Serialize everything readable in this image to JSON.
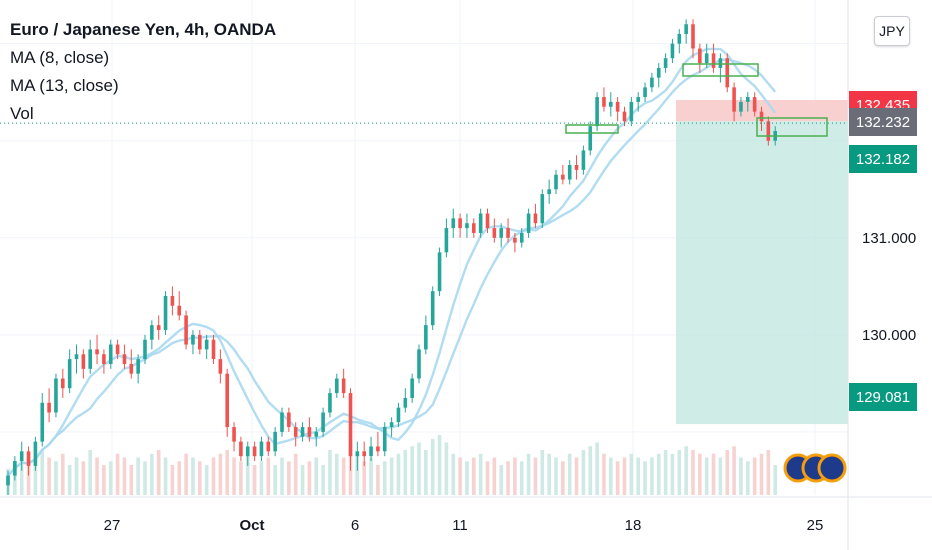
{
  "legend": {
    "title": "Euro / Japanese Yen, 4h, OANDA",
    "ma8": "MA (8, close)",
    "ma13": "MA (13, close)",
    "vol": "Vol"
  },
  "currency_button": "JPY",
  "colors": {
    "up": "#26a69a",
    "down": "#ef5350",
    "ma": "#a8d8f0",
    "tag_red": "#f23645",
    "tag_gray": "#6a6d78",
    "tag_teal": "#089981",
    "box_green": "#4caf50"
  },
  "chart_data": {
    "type": "candlestick",
    "symbol": "EUR/JPY",
    "timeframe": "4h",
    "y_axis": {
      "ticks": [
        "130.000",
        "131.000"
      ],
      "range": [
        128.35,
        133.45
      ]
    },
    "x_axis": {
      "ticks": [
        "27",
        "Oct",
        "6",
        "11",
        "18",
        "25"
      ]
    },
    "price_tags": [
      {
        "label": "132.435",
        "value": 132.435,
        "color": "red"
      },
      {
        "label": "132.232",
        "value": 132.232,
        "color": "gray"
      },
      {
        "label": "132.182",
        "value": 132.182,
        "color": "teal"
      },
      {
        "label": "129.081",
        "value": 129.081,
        "color": "teal"
      }
    ],
    "position": {
      "entry": 132.2,
      "stop": 132.42,
      "target": 129.081
    },
    "candles": [
      [
        128.45,
        128.6,
        128.35,
        128.55
      ],
      [
        128.55,
        128.75,
        128.5,
        128.7
      ],
      [
        128.7,
        128.9,
        128.6,
        128.8
      ],
      [
        128.8,
        128.85,
        128.55,
        128.65
      ],
      [
        128.65,
        128.95,
        128.6,
        128.9
      ],
      [
        128.9,
        129.4,
        128.85,
        129.3
      ],
      [
        129.3,
        129.45,
        129.1,
        129.2
      ],
      [
        129.2,
        129.6,
        129.15,
        129.55
      ],
      [
        129.55,
        129.65,
        129.35,
        129.45
      ],
      [
        129.45,
        129.85,
        129.4,
        129.75
      ],
      [
        129.75,
        129.9,
        129.6,
        129.8
      ],
      [
        129.8,
        129.85,
        129.55,
        129.65
      ],
      [
        129.65,
        129.95,
        129.6,
        129.85
      ],
      [
        129.85,
        130.0,
        129.7,
        129.8
      ],
      [
        129.8,
        129.85,
        129.6,
        129.7
      ],
      [
        129.7,
        129.95,
        129.65,
        129.9
      ],
      [
        129.9,
        129.95,
        129.75,
        129.8
      ],
      [
        129.8,
        129.9,
        129.65,
        129.7
      ],
      [
        129.7,
        129.85,
        129.55,
        129.6
      ],
      [
        129.6,
        129.8,
        129.5,
        129.75
      ],
      [
        129.75,
        130.0,
        129.7,
        129.95
      ],
      [
        129.95,
        130.15,
        129.85,
        130.1
      ],
      [
        130.1,
        130.2,
        129.95,
        130.05
      ],
      [
        130.05,
        130.45,
        130.0,
        130.4
      ],
      [
        130.4,
        130.5,
        130.2,
        130.3
      ],
      [
        130.3,
        130.45,
        130.15,
        130.2
      ],
      [
        130.2,
        130.25,
        129.85,
        129.9
      ],
      [
        129.9,
        130.05,
        129.8,
        130.0
      ],
      [
        130.0,
        130.05,
        129.8,
        129.85
      ],
      [
        129.85,
        130.0,
        129.75,
        129.95
      ],
      [
        129.95,
        130.0,
        129.7,
        129.75
      ],
      [
        129.75,
        129.85,
        129.5,
        129.6
      ],
      [
        129.6,
        129.65,
        128.95,
        129.05
      ],
      [
        129.05,
        129.1,
        128.8,
        128.9
      ],
      [
        128.9,
        128.95,
        128.7,
        128.75
      ],
      [
        128.75,
        128.9,
        128.65,
        128.85
      ],
      [
        128.85,
        128.9,
        128.7,
        128.75
      ],
      [
        128.75,
        128.95,
        128.7,
        128.9
      ],
      [
        128.9,
        128.95,
        128.75,
        128.8
      ],
      [
        128.8,
        129.05,
        128.75,
        129.0
      ],
      [
        129.0,
        129.25,
        128.95,
        129.2
      ],
      [
        129.2,
        129.25,
        129.0,
        129.05
      ],
      [
        129.05,
        129.1,
        128.85,
        128.95
      ],
      [
        128.95,
        129.1,
        128.9,
        129.05
      ],
      [
        129.05,
        129.15,
        128.9,
        128.95
      ],
      [
        128.95,
        129.05,
        128.85,
        129.0
      ],
      [
        129.0,
        129.25,
        128.95,
        129.2
      ],
      [
        129.2,
        129.45,
        129.15,
        129.4
      ],
      [
        129.4,
        129.6,
        129.35,
        129.55
      ],
      [
        129.55,
        129.65,
        129.35,
        129.4
      ],
      [
        129.4,
        129.45,
        128.6,
        128.75
      ],
      [
        128.75,
        128.9,
        128.6,
        128.8
      ],
      [
        128.8,
        128.9,
        128.65,
        128.75
      ],
      [
        128.75,
        128.95,
        128.7,
        128.85
      ],
      [
        128.85,
        129.0,
        128.75,
        128.8
      ],
      [
        128.8,
        129.1,
        128.75,
        129.05
      ],
      [
        129.05,
        129.15,
        128.95,
        129.1
      ],
      [
        129.1,
        129.3,
        129.05,
        129.25
      ],
      [
        129.25,
        129.45,
        129.2,
        129.35
      ],
      [
        129.35,
        129.6,
        129.3,
        129.55
      ],
      [
        129.55,
        129.9,
        129.5,
        129.85
      ],
      [
        129.85,
        130.2,
        129.8,
        130.1
      ],
      [
        130.1,
        130.5,
        130.05,
        130.45
      ],
      [
        130.45,
        130.9,
        130.4,
        130.85
      ],
      [
        130.85,
        131.2,
        130.8,
        131.1
      ],
      [
        131.1,
        131.3,
        131.0,
        131.2
      ],
      [
        131.2,
        131.25,
        131.0,
        131.1
      ],
      [
        131.1,
        131.25,
        131.0,
        131.15
      ],
      [
        131.15,
        131.2,
        131.0,
        131.05
      ],
      [
        131.05,
        131.3,
        131.0,
        131.25
      ],
      [
        131.25,
        131.3,
        131.05,
        131.1
      ],
      [
        131.1,
        131.2,
        130.95,
        131.0
      ],
      [
        131.0,
        131.15,
        130.9,
        131.1
      ],
      [
        131.1,
        131.2,
        130.95,
        131.0
      ],
      [
        131.0,
        131.05,
        130.85,
        130.95
      ],
      [
        130.95,
        131.1,
        130.9,
        131.05
      ],
      [
        131.05,
        131.3,
        131.0,
        131.25
      ],
      [
        131.25,
        131.35,
        131.1,
        131.15
      ],
      [
        131.15,
        131.5,
        131.1,
        131.45
      ],
      [
        131.45,
        131.6,
        131.35,
        131.5
      ],
      [
        131.5,
        131.7,
        131.45,
        131.65
      ],
      [
        131.65,
        131.75,
        131.55,
        131.6
      ],
      [
        131.6,
        131.8,
        131.55,
        131.75
      ],
      [
        131.75,
        131.85,
        131.6,
        131.7
      ],
      [
        131.7,
        131.95,
        131.65,
        131.9
      ],
      [
        131.9,
        132.2,
        131.85,
        132.15
      ],
      [
        132.15,
        132.5,
        132.1,
        132.45
      ],
      [
        132.45,
        132.55,
        132.3,
        132.35
      ],
      [
        132.35,
        132.5,
        132.25,
        132.4
      ],
      [
        132.4,
        132.45,
        132.2,
        132.3
      ],
      [
        132.3,
        132.35,
        132.15,
        132.2
      ],
      [
        132.2,
        132.45,
        132.15,
        132.4
      ],
      [
        132.4,
        132.5,
        132.3,
        132.45
      ],
      [
        132.45,
        132.6,
        132.4,
        132.55
      ],
      [
        132.55,
        132.7,
        132.5,
        132.65
      ],
      [
        132.65,
        132.8,
        132.55,
        132.75
      ],
      [
        132.75,
        132.9,
        132.7,
        132.85
      ],
      [
        132.85,
        133.05,
        132.8,
        133.0
      ],
      [
        133.0,
        133.15,
        132.9,
        133.1
      ],
      [
        133.1,
        133.25,
        133.0,
        133.2
      ],
      [
        133.2,
        133.25,
        132.85,
        132.95
      ],
      [
        132.95,
        133.0,
        132.7,
        132.8
      ],
      [
        132.8,
        133.0,
        132.75,
        132.9
      ],
      [
        132.9,
        133.0,
        132.7,
        132.75
      ],
      [
        132.75,
        132.9,
        132.6,
        132.85
      ],
      [
        132.85,
        132.9,
        132.5,
        132.55
      ],
      [
        132.55,
        132.6,
        132.2,
        132.3
      ],
      [
        132.3,
        132.45,
        132.25,
        132.4
      ],
      [
        132.4,
        132.5,
        132.3,
        132.45
      ],
      [
        132.45,
        132.5,
        132.25,
        132.3
      ],
      [
        132.3,
        132.35,
        132.1,
        132.2
      ],
      [
        132.2,
        132.25,
        131.95,
        132.0
      ],
      [
        132.0,
        132.15,
        131.95,
        132.1
      ]
    ],
    "volumes": [
      0.35,
      0.45,
      0.5,
      0.55,
      0.4,
      0.6,
      0.5,
      0.45,
      0.55,
      0.4,
      0.5,
      0.45,
      0.6,
      0.5,
      0.4,
      0.45,
      0.55,
      0.5,
      0.4,
      0.5,
      0.45,
      0.55,
      0.6,
      0.5,
      0.4,
      0.45,
      0.55,
      0.5,
      0.45,
      0.4,
      0.5,
      0.55,
      0.6,
      0.5,
      0.45,
      0.55,
      0.4,
      0.45,
      0.5,
      0.4,
      0.5,
      0.45,
      0.55,
      0.4,
      0.45,
      0.5,
      0.4,
      0.6,
      0.55,
      0.5,
      0.7,
      0.55,
      0.45,
      0.5,
      0.4,
      0.45,
      0.5,
      0.55,
      0.6,
      0.65,
      0.7,
      0.6,
      0.75,
      0.8,
      0.7,
      0.55,
      0.5,
      0.45,
      0.5,
      0.55,
      0.45,
      0.5,
      0.4,
      0.45,
      0.5,
      0.45,
      0.55,
      0.5,
      0.6,
      0.55,
      0.5,
      0.45,
      0.55,
      0.5,
      0.6,
      0.65,
      0.7,
      0.55,
      0.5,
      0.45,
      0.5,
      0.55,
      0.5,
      0.45,
      0.5,
      0.55,
      0.6,
      0.55,
      0.6,
      0.65,
      0.6,
      0.55,
      0.5,
      0.55,
      0.5,
      0.6,
      0.65,
      0.5,
      0.45,
      0.5,
      0.55,
      0.6,
      0.4
    ]
  }
}
